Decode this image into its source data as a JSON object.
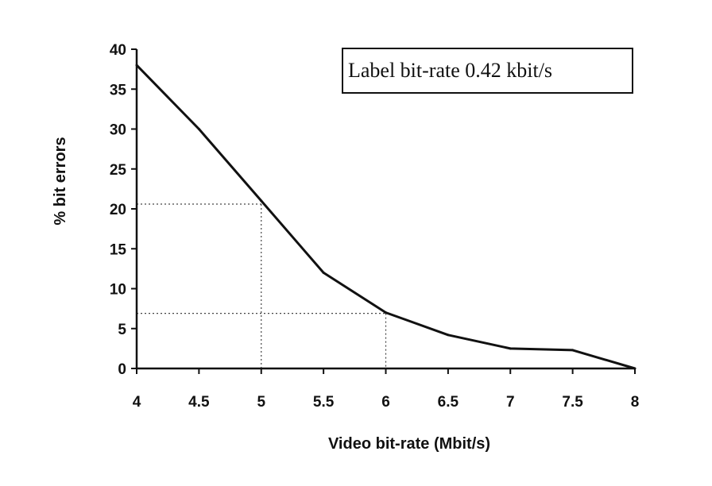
{
  "chart_data": {
    "type": "line",
    "title": "",
    "xlabel": "Video bit-rate (Mbit/s)",
    "ylabel": "% bit errors",
    "xlim": [
      4,
      8
    ],
    "ylim": [
      0,
      40
    ],
    "x_ticks": [
      "4",
      "4.5",
      "5",
      "5.5",
      "6",
      "6.5",
      "7",
      "7.5",
      "8"
    ],
    "y_ticks": [
      "0",
      "5",
      "10",
      "15",
      "20",
      "25",
      "30",
      "35",
      "40"
    ],
    "grid": false,
    "legend_position": "top-right",
    "annotation": "Label bit-rate 0.42 kbit/s",
    "series": [
      {
        "x": [
          4,
          4.5,
          5,
          5.5,
          6,
          6.5,
          7,
          7.5,
          8
        ],
        "y": [
          38,
          30,
          21,
          12,
          7,
          4.2,
          2.5,
          2.3,
          0
        ],
        "color": "#111111"
      }
    ],
    "reference_lines": [
      {
        "x": 5,
        "y": 20.6
      },
      {
        "x": 6,
        "y": 6.9
      }
    ]
  }
}
